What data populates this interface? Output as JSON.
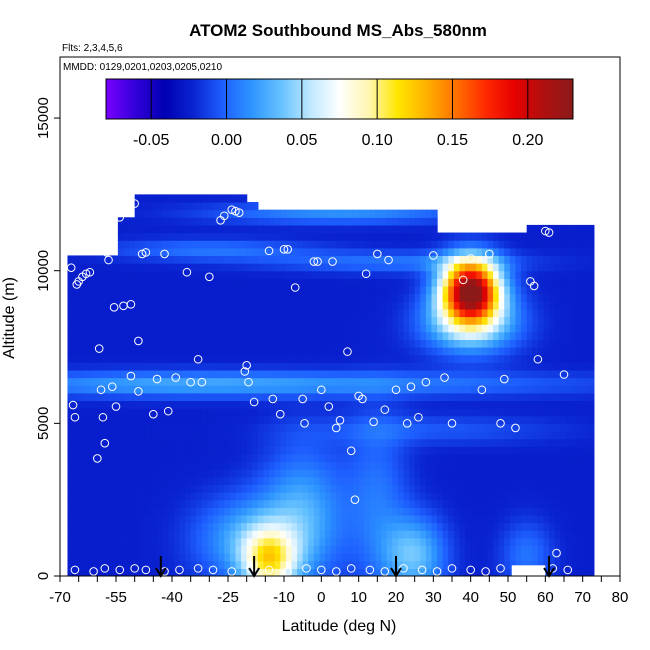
{
  "chart_data": {
    "type": "heatmap",
    "title": "ATOM2 Southbound MS_Abs_580nm",
    "flights_note": "Flts: 2,3,4,5,6",
    "dates_note": "MMDD: 0129,0201,0203,0205,0210",
    "xlabel": "Latitude (deg N)",
    "ylabel": "Altitude (m)",
    "xlim": [
      -70,
      80
    ],
    "ylim": [
      0,
      17000
    ],
    "x_ticks": [
      -70,
      -65,
      -60,
      -55,
      -50,
      -45,
      -40,
      -35,
      -30,
      -25,
      -20,
      -15,
      -10,
      -5,
      0,
      5,
      10,
      15,
      20,
      25,
      30,
      35,
      40,
      45,
      50,
      55,
      60,
      65,
      70,
      75,
      80
    ],
    "x_tick_labels": [
      {
        "value": -70,
        "label": "-70"
      },
      {
        "value": -55,
        "label": "-55"
      },
      {
        "value": -40,
        "label": "-40"
      },
      {
        "value": -25,
        "label": "-25"
      },
      {
        "value": -10,
        "label": "-10"
      },
      {
        "value": 0,
        "label": "0"
      },
      {
        "value": 10,
        "label": "10"
      },
      {
        "value": 20,
        "label": "20"
      },
      {
        "value": 30,
        "label": "30"
      },
      {
        "value": 40,
        "label": "40"
      },
      {
        "value": 50,
        "label": "50"
      },
      {
        "value": 60,
        "label": "60"
      },
      {
        "value": 70,
        "label": "70"
      },
      {
        "value": 80,
        "label": "80"
      }
    ],
    "y_ticks": [
      0,
      5000,
      10000,
      15000
    ],
    "y_tick_labels": [
      "0",
      "5000",
      "10000",
      "15000"
    ],
    "colorbar": {
      "range": [
        -0.08,
        0.23
      ],
      "ticks": [
        -0.05,
        0.0,
        0.05,
        0.1,
        0.15,
        0.2
      ],
      "tick_labels": [
        "-0.05",
        "0.00",
        "0.05",
        "0.10",
        "0.15",
        "0.20"
      ],
      "colors": [
        "#7a00ff",
        "#3300d9",
        "#0000b3",
        "#0a24d1",
        "#1e5fff",
        "#2e95ff",
        "#66c2ff",
        "#bfe8ff",
        "#ffffff",
        "#fff6b0",
        "#ffe600",
        "#ffb000",
        "#ff7000",
        "#ff2a00",
        "#e60000",
        "#b01010",
        "#8b1a1a"
      ]
    },
    "transect_arrows_lat": [
      -43,
      -18,
      20,
      61
    ],
    "grid_lat_bins": [
      -68,
      -65,
      -62,
      -59,
      -56,
      -53,
      -50,
      -47,
      -44,
      -41,
      -38,
      -35,
      -32,
      -29,
      -26,
      -23,
      -20,
      -17,
      -14,
      -11,
      -8,
      -5,
      -2,
      1,
      4,
      7,
      10,
      13,
      16,
      19,
      22,
      25,
      28,
      31,
      34,
      37,
      40,
      43,
      46,
      49,
      52,
      55,
      58,
      61,
      64,
      67,
      70
    ],
    "grid_alt_bins": [
      0,
      500,
      1000,
      1500,
      2000,
      2500,
      3000,
      3500,
      4000,
      4500,
      5000,
      5500,
      6000,
      6500,
      7000,
      7500,
      8000,
      8500,
      9000,
      9500,
      10000,
      10500,
      11000,
      11500,
      12000
    ],
    "heatmap_lat_extent": [
      -68,
      72
    ],
    "heatmap_alt_extent": [
      0,
      12500
    ],
    "features": [
      {
        "name": "background",
        "value": -0.02
      },
      {
        "name": "upper-tropospheric-plume",
        "lat_center": 38,
        "alt_center": 9300,
        "value": 0.22
      },
      {
        "name": "near-surface-tropics",
        "lat_center": -15,
        "alt_center": 600,
        "value": 0.08
      },
      {
        "name": "subtropical-north-boundary-layer",
        "lat_center": 25,
        "alt_center": 600,
        "value": 0.04
      }
    ],
    "sample_points": [
      [
        -67,
        10100
      ],
      [
        -66.5,
        5600
      ],
      [
        -66,
        5200
      ],
      [
        -65.5,
        9550
      ],
      [
        -65,
        9650
      ],
      [
        -64,
        9800
      ],
      [
        -63,
        9900
      ],
      [
        -62,
        9950
      ],
      [
        -60,
        3850
      ],
      [
        -59.5,
        7450
      ],
      [
        -59,
        6100
      ],
      [
        -58.5,
        5200
      ],
      [
        -58,
        4350
      ],
      [
        -57.5,
        10600
      ],
      [
        -57,
        10350
      ],
      [
        -56,
        6200
      ],
      [
        -55.5,
        8800
      ],
      [
        -55,
        5550
      ],
      [
        -54,
        11750
      ],
      [
        -53,
        8850
      ],
      [
        -52.5,
        12000
      ],
      [
        -51,
        6550
      ],
      [
        -51,
        8900
      ],
      [
        -50,
        12200
      ],
      [
        -49,
        6050
      ],
      [
        -49,
        7700
      ],
      [
        -48,
        10550
      ],
      [
        -47,
        10600
      ],
      [
        -45,
        5300
      ],
      [
        -44,
        6450
      ],
      [
        -42,
        10550
      ],
      [
        -41,
        5400
      ],
      [
        -39,
        6500
      ],
      [
        -36,
        9950
      ],
      [
        -35,
        6350
      ],
      [
        -33,
        7100
      ],
      [
        -32,
        6350
      ],
      [
        -30,
        9800
      ],
      [
        -27,
        11650
      ],
      [
        -26,
        11800
      ],
      [
        -24,
        12000
      ],
      [
        -23,
        11950
      ],
      [
        -22,
        11900
      ],
      [
        -20.5,
        6700
      ],
      [
        -20,
        6900
      ],
      [
        -19.5,
        6350
      ],
      [
        -18,
        5700
      ],
      [
        -14,
        10650
      ],
      [
        -13,
        5800
      ],
      [
        -11,
        5300
      ],
      [
        -10,
        10700
      ],
      [
        -9,
        10700
      ],
      [
        -7,
        9450
      ],
      [
        -5,
        5800
      ],
      [
        -4.5,
        5000
      ],
      [
        -2,
        10300
      ],
      [
        -1,
        10300
      ],
      [
        0,
        6100
      ],
      [
        2,
        5550
      ],
      [
        3,
        10300
      ],
      [
        4,
        4850
      ],
      [
        5,
        5100
      ],
      [
        7,
        7350
      ],
      [
        8,
        4100
      ],
      [
        9,
        2500
      ],
      [
        10,
        5900
      ],
      [
        11,
        5800
      ],
      [
        12,
        9900
      ],
      [
        14,
        5050
      ],
      [
        15,
        10550
      ],
      [
        17,
        5450
      ],
      [
        18,
        10350
      ],
      [
        20,
        6100
      ],
      [
        23,
        5000
      ],
      [
        24,
        6200
      ],
      [
        26,
        5200
      ],
      [
        28,
        6350
      ],
      [
        30,
        10500
      ],
      [
        33,
        6500
      ],
      [
        35,
        5000
      ],
      [
        38,
        9700
      ],
      [
        40,
        10400
      ],
      [
        43,
        6100
      ],
      [
        45,
        10550
      ],
      [
        48,
        5000
      ],
      [
        49,
        6450
      ],
      [
        52,
        4850
      ],
      [
        56,
        9650
      ],
      [
        57,
        9500
      ],
      [
        58,
        7100
      ],
      [
        60,
        11300
      ],
      [
        61,
        11250
      ],
      [
        63,
        750
      ],
      [
        65,
        6600
      ],
      [
        -66,
        200
      ],
      [
        -61,
        150
      ],
      [
        -58,
        250
      ],
      [
        -54,
        200
      ],
      [
        -50,
        250
      ],
      [
        -47,
        200
      ],
      [
        -42,
        150
      ],
      [
        -38,
        200
      ],
      [
        -33,
        250
      ],
      [
        -29,
        200
      ],
      [
        -24,
        150
      ],
      [
        -19,
        250
      ],
      [
        -14,
        200
      ],
      [
        -9,
        150
      ],
      [
        -4,
        250
      ],
      [
        0,
        200
      ],
      [
        4,
        150
      ],
      [
        8,
        250
      ],
      [
        13,
        200
      ],
      [
        17,
        150
      ],
      [
        22,
        250
      ],
      [
        27,
        200
      ],
      [
        31,
        150
      ],
      [
        35,
        250
      ],
      [
        40,
        200
      ],
      [
        44,
        150
      ],
      [
        48,
        250
      ],
      [
        53,
        200
      ],
      [
        57,
        150
      ],
      [
        62,
        250
      ],
      [
        66,
        200
      ]
    ]
  }
}
